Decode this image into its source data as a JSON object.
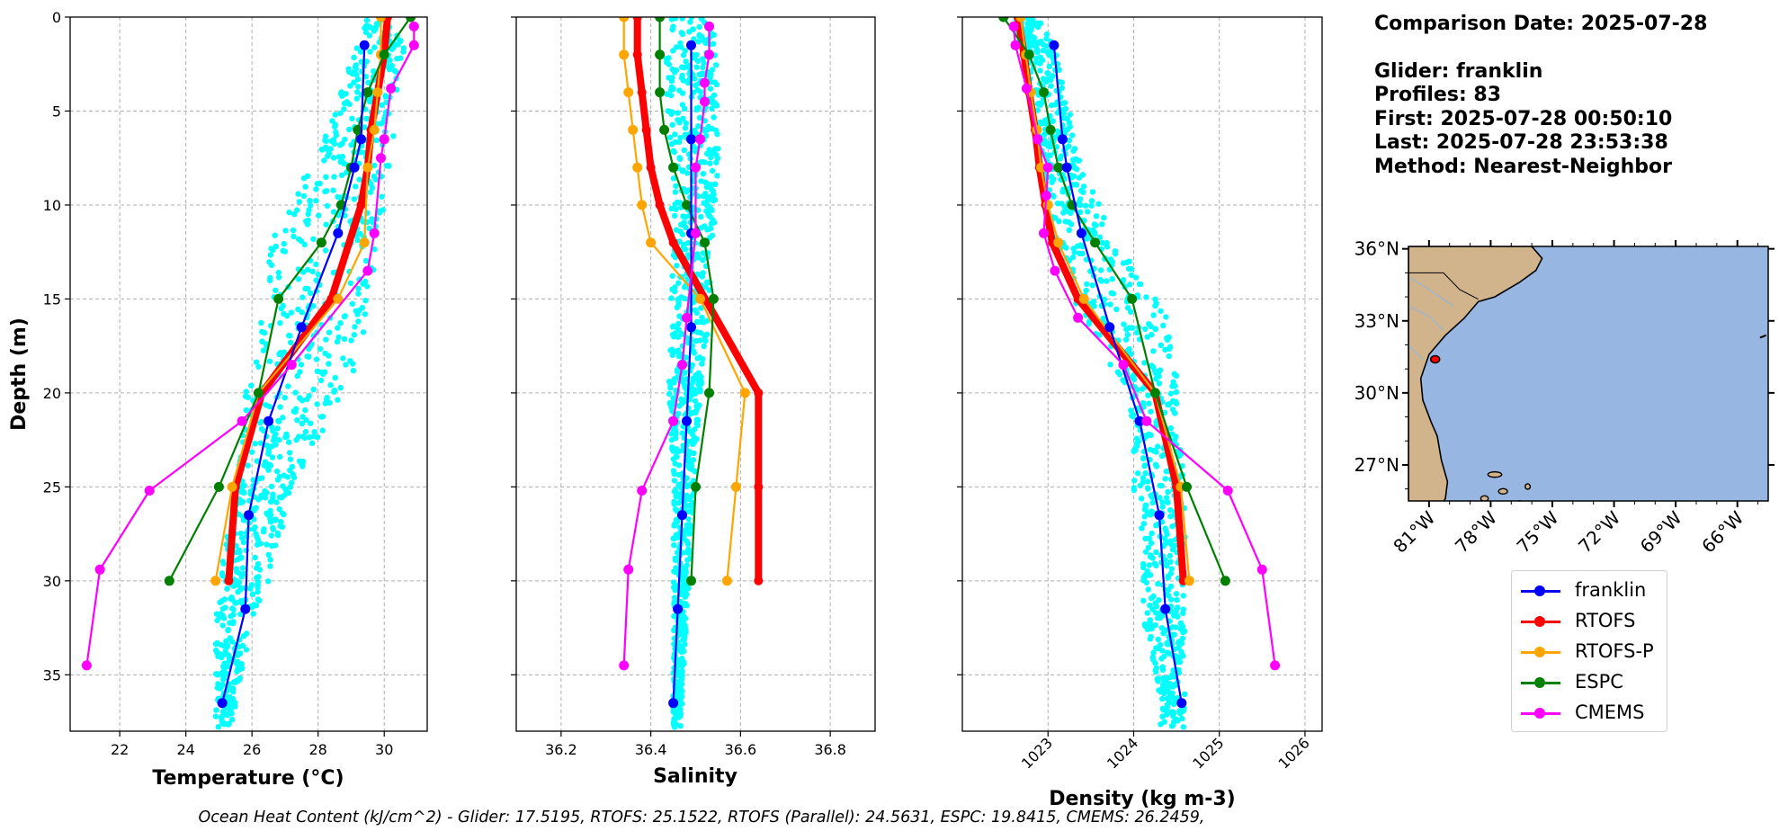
{
  "info": {
    "comparison_date": "Comparison Date: 2025-07-28",
    "glider": "Glider: franklin",
    "profiles": "Profiles: 83",
    "first": "First: 2025-07-28 00:50:10",
    "last": "Last: 2025-07-28 23:53:38",
    "method": "Method: Nearest-Neighbor"
  },
  "footer": "Ocean Heat Content (kJ/cm^2) - Glider: 17.5195,  RTOFS: 25.1522,  RTOFS (Parallel): 24.5631,  ESPC: 19.8415,  CMEMS: 26.2459,",
  "colors": {
    "franklin": "#0000ff",
    "RTOFS": "#ff0000",
    "RTOFS-P": "#ffa500",
    "ESPC": "#008000",
    "CMEMS": "#ff00ff",
    "scatter": "#00ffff",
    "ocean": "#97b6e1",
    "land": "#d2b48c",
    "grid": "#b0b0b0"
  },
  "legend": [
    "franklin",
    "RTOFS",
    "RTOFS-P",
    "ESPC",
    "CMEMS"
  ],
  "chart_data": [
    {
      "type": "line",
      "xlabel": "Temperature (°C)",
      "ylabel": "Depth (m)",
      "xlim": [
        20.5,
        31.3
      ],
      "ylim": [
        38,
        0
      ],
      "yticks": [
        "0",
        "5",
        "10",
        "15",
        "20",
        "25",
        "30",
        "35"
      ],
      "xticks": [
        "22",
        "24",
        "26",
        "28",
        "30"
      ],
      "grid": true,
      "scatter_range": [
        [
          0,
          29.5,
          30.6
        ],
        [
          2,
          29.0,
          30.6
        ],
        [
          4,
          28.7,
          30.4
        ],
        [
          6,
          28.3,
          30.3
        ],
        [
          8,
          27.8,
          30.2
        ],
        [
          10,
          27.0,
          30.0
        ],
        [
          12,
          26.6,
          29.8
        ],
        [
          14,
          26.4,
          29.7
        ],
        [
          16,
          26.2,
          29.6
        ],
        [
          18,
          26.2,
          29.3
        ],
        [
          20,
          25.8,
          28.8
        ],
        [
          22,
          25.7,
          28.2
        ],
        [
          24,
          25.6,
          27.5
        ],
        [
          26,
          25.5,
          27.1
        ],
        [
          28,
          25.2,
          26.8
        ],
        [
          30,
          25.0,
          26.5
        ],
        [
          32,
          24.9,
          26.0
        ],
        [
          34,
          24.9,
          25.8
        ],
        [
          36,
          24.9,
          25.6
        ],
        [
          37.5,
          24.9,
          25.4
        ]
      ],
      "series": [
        {
          "name": "franklin",
          "x": [
            29.4,
            29.3,
            29.1,
            28.6,
            27.5,
            26.5,
            25.9,
            25.8,
            25.1
          ],
          "y": [
            1.5,
            6.5,
            8,
            11.5,
            16.5,
            21.5,
            26.5,
            31.5,
            36.5
          ]
        },
        {
          "name": "RTOFS",
          "x": [
            30.1,
            30.0,
            29.8,
            29.6,
            29.5,
            29.3,
            28.4,
            26.3,
            25.5,
            25.3
          ],
          "y": [
            0,
            2,
            4,
            6,
            8,
            10,
            15,
            20,
            25,
            30
          ]
        },
        {
          "name": "RTOFS-P",
          "x": [
            29.9,
            29.9,
            29.8,
            29.7,
            29.5,
            29.4,
            28.6,
            26.2,
            25.4,
            24.9
          ],
          "y": [
            0,
            2,
            4,
            6,
            8,
            12,
            15,
            20,
            25,
            30
          ]
        },
        {
          "name": "ESPC",
          "x": [
            30.8,
            30.0,
            29.5,
            29.2,
            29.0,
            28.7,
            28.1,
            26.8,
            26.2,
            25.0,
            23.5
          ],
          "y": [
            0,
            2,
            4,
            6,
            8,
            10,
            12,
            15,
            20,
            25,
            30
          ]
        },
        {
          "name": "CMEMS",
          "x": [
            30.9,
            30.9,
            30.2,
            30.0,
            30.0,
            29.9,
            29.7,
            29.5,
            27.2,
            25.7,
            22.9,
            21.4,
            21.0
          ],
          "y": [
            0.5,
            1.5,
            3.8,
            6.5,
            6.5,
            7.5,
            11.5,
            13.5,
            18.5,
            21.5,
            25.2,
            29.4,
            34.5
          ]
        }
      ]
    },
    {
      "type": "line",
      "xlabel": "Salinity",
      "xlim": [
        36.1,
        36.9
      ],
      "ylim": [
        38,
        0
      ],
      "xticks": [
        "36.2",
        "36.4",
        "36.6",
        "36.8"
      ],
      "grid": true,
      "scatter_range": [
        [
          0,
          36.44,
          36.55
        ],
        [
          4,
          36.43,
          36.55
        ],
        [
          8,
          36.44,
          36.55
        ],
        [
          12,
          36.45,
          36.54
        ],
        [
          16,
          36.44,
          36.53
        ],
        [
          20,
          36.44,
          36.51
        ],
        [
          24,
          36.45,
          36.5
        ],
        [
          28,
          36.45,
          36.49
        ],
        [
          32,
          36.45,
          36.48
        ],
        [
          36,
          36.45,
          36.47
        ]
      ],
      "series": [
        {
          "name": "franklin",
          "x": [
            36.49,
            36.49,
            36.49,
            36.49,
            36.48,
            36.47,
            36.46,
            36.45
          ],
          "y": [
            1.5,
            6.5,
            11.5,
            16.5,
            21.5,
            26.5,
            31.5,
            36.5
          ]
        },
        {
          "name": "RTOFS",
          "x": [
            36.37,
            36.37,
            36.38,
            36.39,
            36.4,
            36.42,
            36.45,
            36.64,
            36.64,
            36.64
          ],
          "y": [
            0,
            2,
            4,
            6,
            8,
            10,
            12,
            20,
            25,
            30
          ]
        },
        {
          "name": "RTOFS-P",
          "x": [
            36.34,
            36.34,
            36.35,
            36.36,
            36.37,
            36.38,
            36.4,
            36.51,
            36.61,
            36.59,
            36.57
          ],
          "y": [
            0,
            2,
            4,
            6,
            8,
            10,
            12,
            15,
            20,
            25,
            30
          ]
        },
        {
          "name": "ESPC",
          "x": [
            36.42,
            36.42,
            36.42,
            36.43,
            36.45,
            36.48,
            36.52,
            36.54,
            36.53,
            36.5,
            36.49
          ],
          "y": [
            0,
            2,
            4,
            6,
            8,
            10,
            12,
            15,
            20,
            25,
            30
          ]
        },
        {
          "name": "CMEMS",
          "x": [
            36.53,
            36.53,
            36.52,
            36.52,
            36.51,
            36.5,
            36.5,
            36.48,
            36.47,
            36.45,
            36.38,
            36.35,
            36.34
          ],
          "y": [
            0.5,
            2,
            3.5,
            4.5,
            6.5,
            8,
            11.5,
            16,
            18.5,
            21.5,
            25.2,
            29.4,
            34.5
          ]
        }
      ]
    },
    {
      "type": "line",
      "xlabel": "Density (kg m-3)",
      "xlim": [
        1022.0,
        1026.2
      ],
      "ylim": [
        38,
        0
      ],
      "xticks": [
        "1023",
        "1024",
        "1025",
        "1026"
      ],
      "grid": true,
      "scatter_range": [
        [
          0,
          1022.6,
          1022.9
        ],
        [
          2,
          1022.7,
          1023.1
        ],
        [
          4,
          1022.8,
          1023.2
        ],
        [
          6,
          1022.9,
          1023.3
        ],
        [
          8,
          1022.9,
          1023.4
        ],
        [
          10,
          1023.0,
          1023.6
        ],
        [
          12,
          1023.1,
          1023.8
        ],
        [
          14,
          1023.2,
          1024.1
        ],
        [
          16,
          1023.4,
          1024.4
        ],
        [
          18,
          1023.6,
          1024.5
        ],
        [
          20,
          1023.9,
          1024.5
        ],
        [
          22,
          1024.0,
          1024.5
        ],
        [
          24,
          1024.0,
          1024.6
        ],
        [
          26,
          1024.0,
          1024.6
        ],
        [
          28,
          1024.1,
          1024.6
        ],
        [
          30,
          1024.1,
          1024.6
        ],
        [
          32,
          1024.1,
          1024.6
        ],
        [
          34,
          1024.2,
          1024.6
        ],
        [
          36,
          1024.3,
          1024.6
        ]
      ],
      "series": [
        {
          "name": "franklin",
          "x": [
            1023.07,
            1023.17,
            1023.22,
            1023.39,
            1023.72,
            1024.07,
            1024.3,
            1024.37,
            1024.56
          ],
          "y": [
            1.5,
            6.5,
            8,
            11.5,
            16.5,
            21.5,
            26.5,
            31.5,
            36.5
          ]
        },
        {
          "name": "RTOFS",
          "x": [
            1022.65,
            1022.72,
            1022.78,
            1022.85,
            1022.9,
            1022.97,
            1023.05,
            1023.35,
            1024.25,
            1024.5,
            1024.58
          ],
          "y": [
            0,
            2,
            4,
            6,
            8,
            10,
            12,
            15,
            20,
            25,
            30
          ]
        },
        {
          "name": "RTOFS-P",
          "x": [
            1022.68,
            1022.74,
            1022.8,
            1022.87,
            1022.92,
            1023.0,
            1023.12,
            1023.42,
            1024.25,
            1024.55,
            1024.65
          ],
          "y": [
            0,
            2,
            4,
            6,
            8,
            10,
            12,
            15,
            20,
            25,
            30
          ]
        },
        {
          "name": "ESPC",
          "x": [
            1022.48,
            1022.78,
            1022.95,
            1023.03,
            1023.12,
            1023.28,
            1023.55,
            1023.98,
            1024.25,
            1024.62,
            1025.07
          ],
          "y": [
            0,
            2,
            4,
            6,
            8,
            10,
            12,
            15,
            20,
            25,
            30
          ]
        },
        {
          "name": "CMEMS",
          "x": [
            1022.6,
            1022.62,
            1022.75,
            1022.88,
            1023.0,
            1022.98,
            1022.95,
            1023.08,
            1023.35,
            1023.88,
            1024.15,
            1025.1,
            1025.5,
            1025.65
          ],
          "y": [
            0.5,
            1.5,
            3.8,
            6.5,
            8,
            9.5,
            11.5,
            13.5,
            16,
            18.5,
            21.5,
            25.2,
            29.4,
            34.5
          ]
        }
      ]
    }
  ],
  "map": {
    "lon_range": [
      -82,
      -64.5
    ],
    "lat_range": [
      25.5,
      36.1
    ],
    "lat_labels": [
      "36°N",
      "33°N",
      "30°N",
      "27°N"
    ],
    "lat_values": [
      36,
      33,
      30,
      27
    ],
    "lon_labels": [
      "81°W",
      "78°W",
      "75°W",
      "72°W",
      "69°W",
      "66°W"
    ],
    "lon_values": [
      -81,
      -78,
      -75,
      -72,
      -69,
      -66
    ],
    "glider_location": [
      -80.7,
      31.4
    ]
  }
}
